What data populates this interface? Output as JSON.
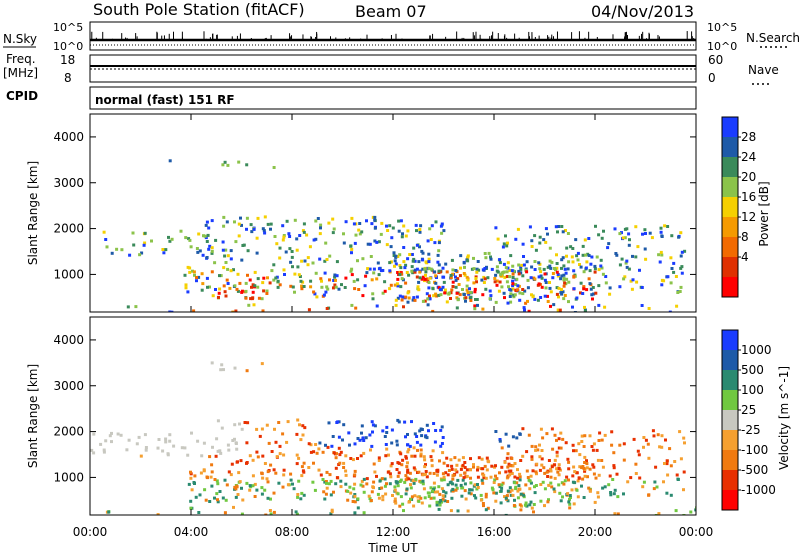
{
  "header": {
    "station": "South Pole Station (fitACF)",
    "beam": "Beam 07",
    "date": "04/Nov/2013"
  },
  "side_labels": {
    "nsky": "N.Sky",
    "nsearch": "N.Search",
    "freq_line1": "Freq.",
    "freq_line2": "[MHz]",
    "nave": "Nave",
    "cpid": "CPID"
  },
  "strip_ticks": {
    "nsky_top": "10^5",
    "nsky_bottom": "10^0",
    "nsearch_top": "10^5",
    "nsearch_bottom": "10^0",
    "freq_top": "18",
    "freq_bottom": "8",
    "nave_top": "60",
    "nave_bottom": "0"
  },
  "cpid_text": "normal (fast) 151 RF",
  "colors": {
    "power_scale": [
      "#1a3cff",
      "#1e5aa8",
      "#3a8a5a",
      "#8bc34a",
      "#f5d000",
      "#f59a00",
      "#f26a00",
      "#e03000",
      "#ff0000"
    ],
    "velocity_scale": [
      "#1a3cff",
      "#1e5aa8",
      "#2a8a70",
      "#70c840",
      "#c8c8c0",
      "#f5a030",
      "#f07a10",
      "#e83000",
      "#ff0000"
    ]
  },
  "chart_data": [
    {
      "type": "heatmap",
      "name": "power",
      "ylabel": "Slant Range [km]",
      "xlabel": "Time UT",
      "x_ticks": [
        "00:00",
        "04:00",
        "08:00",
        "12:00",
        "16:00",
        "20:00",
        "00:00"
      ],
      "y_ticks": [
        "1000",
        "2000",
        "3000",
        "4000"
      ],
      "y_range": [
        180,
        4500
      ],
      "colorbar_label": "Power [dB]",
      "colorbar_ticks": [
        "4",
        "8",
        "12",
        "16",
        "20",
        "24",
        "28"
      ]
    },
    {
      "type": "heatmap",
      "name": "velocity",
      "ylabel": "Slant Range [km]",
      "xlabel": "Time UT",
      "x_ticks": [
        "00:00",
        "04:00",
        "08:00",
        "12:00",
        "16:00",
        "20:00",
        "00:00"
      ],
      "y_ticks": [
        "1000",
        "2000",
        "3000",
        "4000"
      ],
      "y_range": [
        180,
        4500
      ],
      "colorbar_label": "Velocity [m s^-1]",
      "colorbar_ticks": [
        "1000",
        "500",
        "100",
        "25",
        "-25",
        "-100",
        "-500",
        "-1000"
      ]
    }
  ]
}
